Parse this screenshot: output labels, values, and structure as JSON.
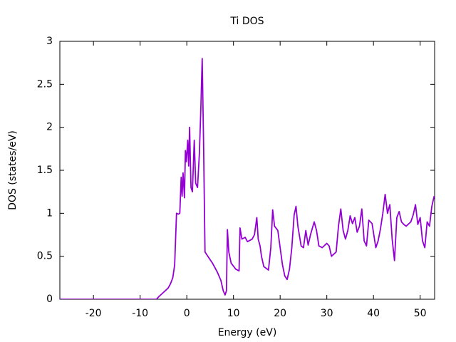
{
  "chart_data": {
    "type": "line",
    "title": "Ti DOS",
    "x_label": "Energy (eV)",
    "y_label": "DOS (states/eV)",
    "xlim": [
      -27.2,
      53.1
    ],
    "ylim": [
      0,
      3
    ],
    "xticks": [
      -20,
      -10,
      0,
      10,
      20,
      30,
      40,
      50
    ],
    "yticks": [
      0,
      0.5,
      1,
      1.5,
      2,
      2.5,
      3
    ],
    "grid": false,
    "series": [
      {
        "name": "Ti DOS",
        "color": "#9400d3",
        "x": [
          -27.2,
          -6.5,
          -6,
          -5,
          -4,
          -3.5,
          -3,
          -2.6,
          -2.4,
          -2.2,
          -1.8,
          -1.5,
          -1.2,
          -1,
          -0.8,
          -0.5,
          -0.3,
          -0.1,
          0.2,
          0.4,
          0.6,
          0.9,
          1.2,
          1.6,
          1.9,
          2.3,
          2.7,
          3.0,
          3.3,
          3.6,
          3.9,
          4.5,
          5.5,
          6.5,
          7.3,
          7.8,
          8.2,
          8.5,
          8.7,
          9,
          9.5,
          10.5,
          11.2,
          11.4,
          11.8,
          12.5,
          13,
          14,
          14.5,
          15,
          15.3,
          15.7,
          16,
          16.5,
          17.5,
          18,
          18.4,
          18.8,
          19.5,
          20,
          20.5,
          21,
          21.5,
          22,
          22.5,
          23,
          23.4,
          23.8,
          24.5,
          25,
          25.5,
          26,
          26.5,
          27.3,
          27.8,
          28.3,
          29,
          30,
          30.5,
          31,
          32,
          32.5,
          33,
          33.5,
          34,
          34.5,
          35,
          35.5,
          36,
          36.5,
          37,
          37.5,
          38,
          38.5,
          39,
          39.7,
          40.5,
          41,
          41.5,
          42,
          42.5,
          43,
          43.5,
          44,
          44.5,
          45,
          45.5,
          46,
          46.5,
          47,
          48,
          48.5,
          49,
          49.5,
          50,
          50.5,
          51,
          51.5,
          52,
          52.5,
          53
        ],
        "values": [
          0,
          0,
          0.03,
          0.08,
          0.13,
          0.18,
          0.25,
          0.4,
          0.7,
          1.0,
          0.99,
          1.0,
          1.42,
          1.2,
          1.47,
          1.18,
          1.73,
          1.6,
          1.85,
          1.55,
          2.0,
          1.3,
          1.25,
          1.85,
          1.35,
          1.3,
          1.7,
          2.2,
          2.8,
          1.8,
          0.55,
          0.5,
          0.42,
          0.32,
          0.22,
          0.1,
          0.05,
          0.1,
          0.81,
          0.55,
          0.42,
          0.35,
          0.33,
          0.83,
          0.7,
          0.72,
          0.67,
          0.7,
          0.75,
          0.95,
          0.7,
          0.62,
          0.5,
          0.38,
          0.34,
          0.6,
          1.04,
          0.85,
          0.8,
          0.6,
          0.4,
          0.27,
          0.23,
          0.35,
          0.6,
          0.98,
          1.08,
          0.85,
          0.62,
          0.6,
          0.8,
          0.63,
          0.75,
          0.9,
          0.8,
          0.62,
          0.6,
          0.65,
          0.62,
          0.5,
          0.55,
          0.85,
          1.05,
          0.8,
          0.7,
          0.8,
          0.97,
          0.88,
          0.95,
          0.78,
          0.85,
          1.05,
          0.68,
          0.62,
          0.92,
          0.88,
          0.6,
          0.68,
          0.82,
          1.0,
          1.22,
          1.0,
          1.1,
          0.7,
          0.45,
          0.95,
          1.02,
          0.9,
          0.87,
          0.85,
          0.9,
          0.98,
          1.1,
          0.87,
          0.95,
          0.68,
          0.6,
          0.9,
          0.85,
          1.08,
          1.2
        ]
      }
    ]
  }
}
